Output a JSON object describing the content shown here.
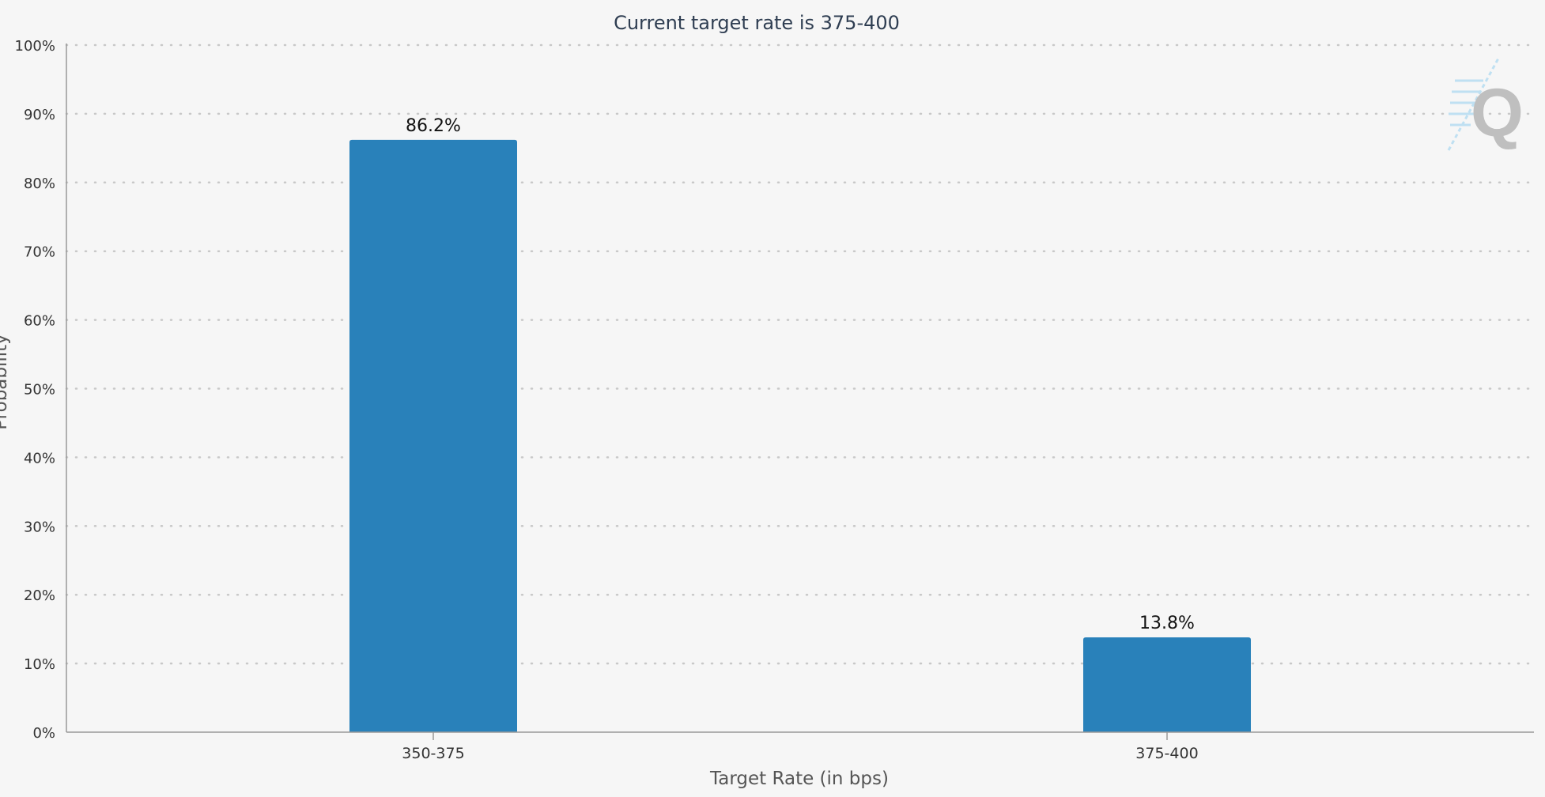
{
  "colors": {
    "background": "#f6f6f6",
    "bar": "#2981ba",
    "grid": "#c8c8c8",
    "axis": "#999999",
    "title": "#2f3e52",
    "watermark_letter": "#bfbfbf",
    "watermark_stripes": "#bfe0f2"
  },
  "watermark": {
    "icon": "q-logo-icon",
    "letter": "Q"
  },
  "chart_data": {
    "type": "bar",
    "title": "Current target rate is 375-400",
    "xlabel": "Target Rate (in bps)",
    "ylabel": "Probability",
    "categories": [
      "350-375",
      "375-400"
    ],
    "values": [
      86.2,
      13.8
    ],
    "value_labels": [
      "86.2%",
      "13.8%"
    ],
    "ylim": [
      0,
      100
    ],
    "yticks": [
      0,
      10,
      20,
      30,
      40,
      50,
      60,
      70,
      80,
      90,
      100
    ],
    "ytick_labels": [
      "0%",
      "10%",
      "20%",
      "30%",
      "40%",
      "50%",
      "60%",
      "70%",
      "80%",
      "90%",
      "100%"
    ],
    "grid": true,
    "legend": "none"
  }
}
